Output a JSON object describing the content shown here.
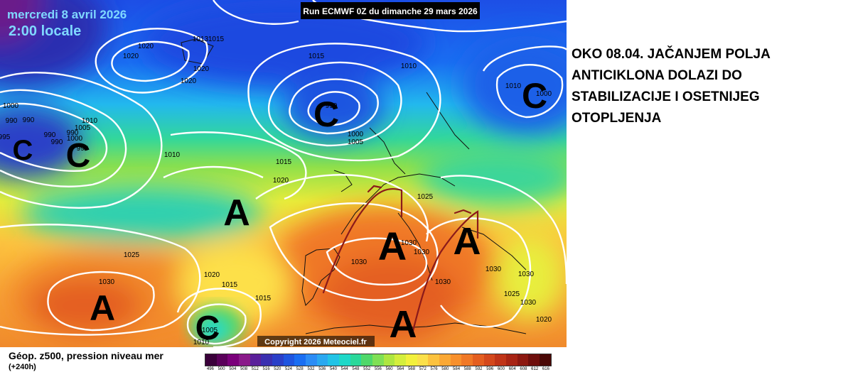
{
  "header": {
    "date": "mercredi 8 avril 2026",
    "time": "2:00 locale",
    "run": "Run ECMWF 0Z du dimanche 29 mars 2026"
  },
  "copyright": "Copyright 2026 Meteociel.fr",
  "caption": {
    "lines": [
      "OKO 08.04. JAČANJEM POLJA",
      "ANTICIKLONA DOLAZI DO",
      "STABILIZACIJE I OSETNIJEG",
      "OTOPLJENJA"
    ]
  },
  "legend": {
    "title": "Géop. z500, pression niveau mer",
    "subtitle": "(+240h)",
    "values": [
      "496",
      "500",
      "504",
      "508",
      "512",
      "516",
      "520",
      "524",
      "528",
      "532",
      "536",
      "540",
      "544",
      "548",
      "552",
      "556",
      "560",
      "564",
      "568",
      "572",
      "576",
      "580",
      "584",
      "588",
      "592",
      "596",
      "600",
      "604",
      "608",
      "612",
      "616"
    ],
    "colors": [
      "#3a003a",
      "#5a005a",
      "#7a007a",
      "#8a1a8a",
      "#5a1f9a",
      "#3a2fb0",
      "#2a3fc8",
      "#1f55e0",
      "#1a6ef2",
      "#2b8cf5",
      "#2aa8f0",
      "#22c3e6",
      "#1fd8c8",
      "#2ad89a",
      "#4fd86a",
      "#7fe055",
      "#aee640",
      "#d4ee3c",
      "#f2f03c",
      "#fbe04a",
      "#fcc23e",
      "#fba834",
      "#f8902c",
      "#f07826",
      "#e45e20",
      "#d4481c",
      "#c03418",
      "#a82414",
      "#8c1810",
      "#6e0e0c",
      "#4a0806"
    ]
  },
  "systems": [
    {
      "label": "C"
    },
    {
      "label": "C"
    },
    {
      "label": "C"
    },
    {
      "label": "C"
    },
    {
      "label": "C"
    },
    {
      "label": "A"
    },
    {
      "label": "A"
    },
    {
      "label": "A"
    },
    {
      "label": "A"
    },
    {
      "label": "A"
    }
  ],
  "isobar_labels": [
    {
      "text": "1020"
    },
    {
      "text": "1013"
    },
    {
      "text": "1015"
    },
    {
      "text": "1020"
    },
    {
      "text": "1020"
    },
    {
      "text": "1020"
    },
    {
      "text": "1015"
    },
    {
      "text": "1010"
    },
    {
      "text": "1010"
    },
    {
      "text": "1000"
    },
    {
      "text": "990"
    },
    {
      "text": "1000"
    },
    {
      "text": "1005"
    },
    {
      "text": "1000"
    },
    {
      "text": "990"
    },
    {
      "text": "990"
    },
    {
      "text": "1010"
    },
    {
      "text": "1005"
    },
    {
      "text": "990"
    },
    {
      "text": "995"
    },
    {
      "text": "990"
    },
    {
      "text": "990"
    },
    {
      "text": "1000"
    },
    {
      "text": "990"
    },
    {
      "text": "1010"
    },
    {
      "text": "1015"
    },
    {
      "text": "1020"
    },
    {
      "text": "1025"
    },
    {
      "text": "1030"
    },
    {
      "text": "1030"
    },
    {
      "text": "1030"
    },
    {
      "text": "1030"
    },
    {
      "text": "1030"
    },
    {
      "text": "1030"
    },
    {
      "text": "1030"
    },
    {
      "text": "1025"
    },
    {
      "text": "1020"
    },
    {
      "text": "1015"
    },
    {
      "text": "1025"
    },
    {
      "text": "1030"
    },
    {
      "text": "1020"
    },
    {
      "text": "1015"
    },
    {
      "text": "1010"
    },
    {
      "text": "1005"
    }
  ],
  "colors": {
    "arrow": "#8b1a1a",
    "isobar": "#ffffff",
    "header_text": "#7fd8ff"
  }
}
